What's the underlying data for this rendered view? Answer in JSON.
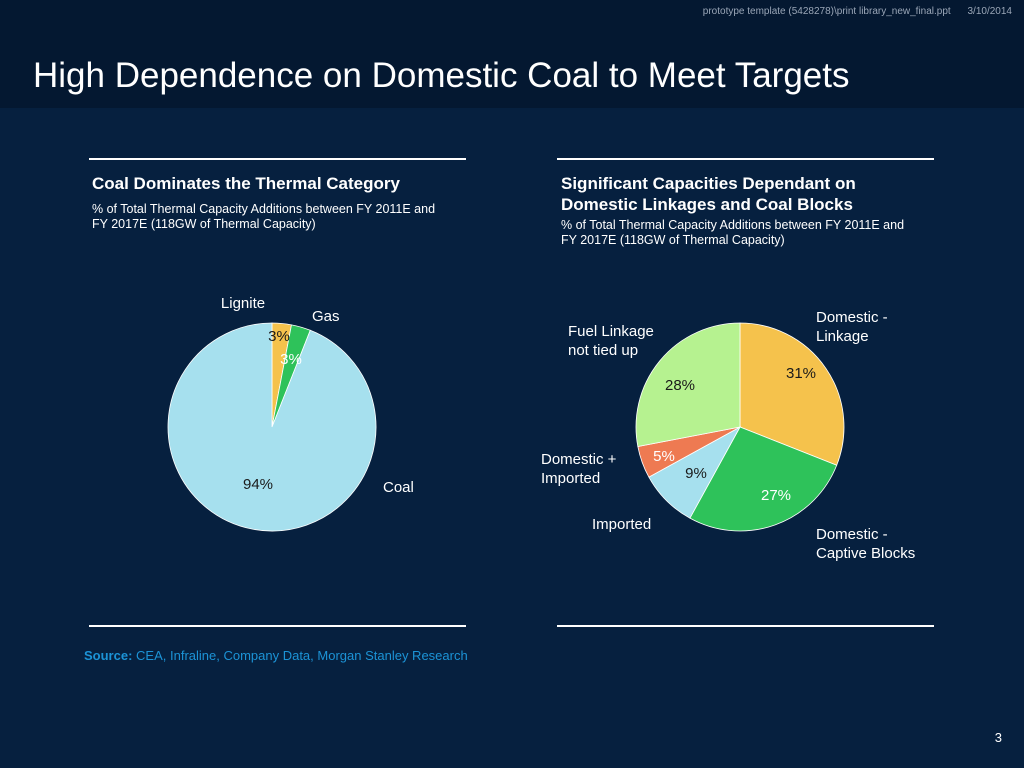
{
  "header": {
    "file_path": "prototype template (5428278)\\print library_new_final.ppt",
    "date": "3/10/2014",
    "title": "High Dependence on Domestic Coal to Meet Targets"
  },
  "left_panel": {
    "title": "Coal Dominates the Thermal Category",
    "subtitle_line1": "% of Total Thermal Capacity Additions between FY 2011E and",
    "subtitle_line2": "FY 2017E (118GW of Thermal Capacity)"
  },
  "right_panel": {
    "title_line1": "Significant Capacities Dependant on",
    "title_line2": "Domestic Linkages and Coal Blocks",
    "subtitle_line1": "% of Total Thermal Capacity Additions between FY 2011E and",
    "subtitle_line2": "FY 2017E (118GW of Thermal Capacity)"
  },
  "chart_data": [
    {
      "type": "pie",
      "title": "Coal Dominates the Thermal Category",
      "slices": [
        {
          "label": "Lignite",
          "value": 3,
          "value_label": "3%",
          "color": "#F5C24C"
        },
        {
          "label": "Gas",
          "value": 3,
          "value_label": "3%",
          "color": "#2EC25A"
        },
        {
          "label": "Coal",
          "value": 94,
          "value_label": "94%",
          "color": "#A6E0EE"
        }
      ]
    },
    {
      "type": "pie",
      "title": "Significant Capacities Dependant on Domestic Linkages and Coal Blocks",
      "slices": [
        {
          "label": "Domestic - Linkage",
          "label_lines": [
            "Domestic -",
            "Linkage"
          ],
          "value": 31,
          "value_label": "31%",
          "color": "#F5C24C"
        },
        {
          "label": "Domestic - Captive Blocks",
          "label_lines": [
            "Domestic -",
            "Captive Blocks"
          ],
          "value": 27,
          "value_label": "27%",
          "color": "#2EC25A"
        },
        {
          "label": "Imported",
          "label_lines": [
            "Imported"
          ],
          "value": 9,
          "value_label": "9%",
          "color": "#A6E0EE"
        },
        {
          "label": "Domestic + Imported",
          "label_lines": [
            "Domestic +",
            "Imported"
          ],
          "value": 5,
          "value_label": "5%",
          "color": "#EE7A52"
        },
        {
          "label": "Fuel Linkage not tied up",
          "label_lines": [
            "Fuel Linkage",
            "not tied up"
          ],
          "value": 28,
          "value_label": "28%",
          "color": "#B6F290"
        }
      ]
    }
  ],
  "footer": {
    "source_label": "Source:",
    "source_text": "CEA, Infraline, Company Data, Morgan Stanley Research",
    "page_number": "3"
  }
}
